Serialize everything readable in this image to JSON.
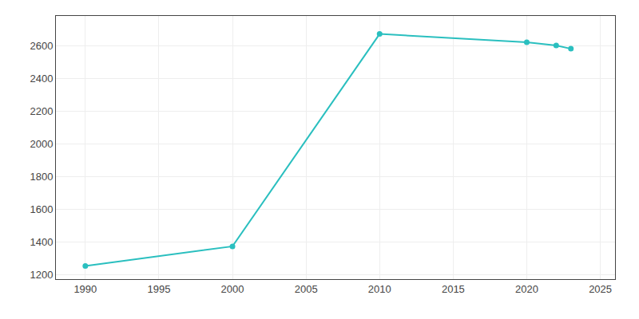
{
  "chart_data": {
    "type": "line",
    "x": [
      1990,
      2000,
      2010,
      2020,
      2022,
      2023
    ],
    "values": [
      1255,
      1375,
      2670,
      2620,
      2600,
      2580
    ],
    "color": "#2abfbf",
    "marker": "circle",
    "xlim": [
      1988,
      2026
    ],
    "ylim": [
      1175,
      2780
    ],
    "xticks": [
      1990,
      1995,
      2000,
      2005,
      2010,
      2015,
      2020,
      2025
    ],
    "yticks": [
      1200,
      1400,
      1600,
      1800,
      2000,
      2200,
      2400,
      2600
    ],
    "grid": true
  }
}
